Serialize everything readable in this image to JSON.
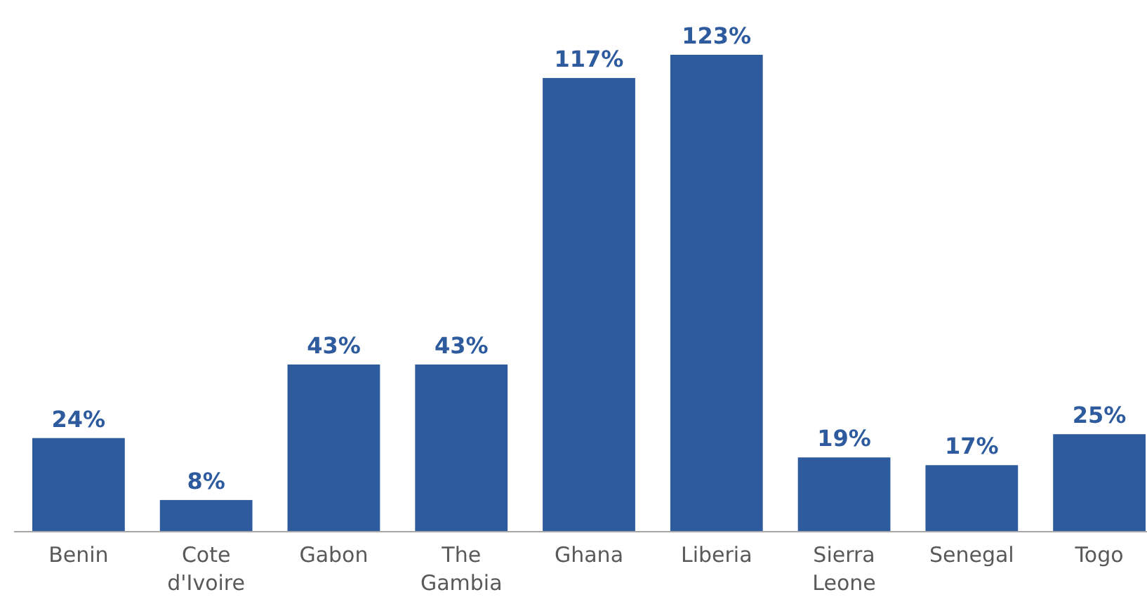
{
  "chart_data": {
    "type": "bar",
    "categories": [
      "Benin",
      "Cote d'Ivoire",
      "Gabon",
      "The Gambia",
      "Ghana",
      "Liberia",
      "Sierra Leone",
      "Senegal",
      "Togo"
    ],
    "values": [
      24,
      8,
      43,
      43,
      117,
      123,
      19,
      17,
      25
    ],
    "value_labels": [
      "24%",
      "8%",
      "43%",
      "43%",
      "117%",
      "123%",
      "19%",
      "17%",
      "25%"
    ],
    "color": "#2e5b9e"
  }
}
